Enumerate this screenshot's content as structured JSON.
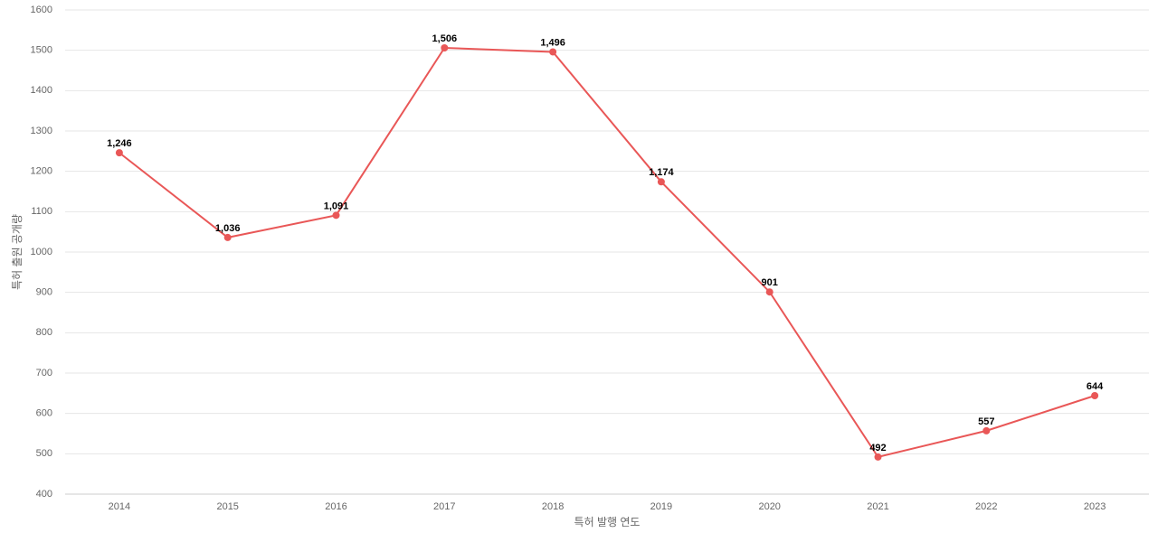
{
  "chart_data": {
    "type": "line",
    "x_label": "특허 발행 연도",
    "y_label": "특허 출원 공개량",
    "categories": [
      "2014",
      "2015",
      "2016",
      "2017",
      "2018",
      "2019",
      "2020",
      "2021",
      "2022",
      "2023"
    ],
    "series": [
      {
        "color": "#e95757",
        "values": [
          1246,
          1036,
          1091,
          1506,
          1496,
          1174,
          901,
          492,
          557,
          644
        ],
        "value_labels": [
          "1,246",
          "1,036",
          "1,091",
          "1,506",
          "1,496",
          "1,174",
          "901",
          "492",
          "557",
          "644"
        ]
      }
    ],
    "ylim": [
      400,
      1600
    ],
    "yticks": [
      400,
      500,
      600,
      700,
      800,
      900,
      1000,
      1100,
      1200,
      1300,
      1400,
      1500,
      1600
    ],
    "grid": true
  }
}
